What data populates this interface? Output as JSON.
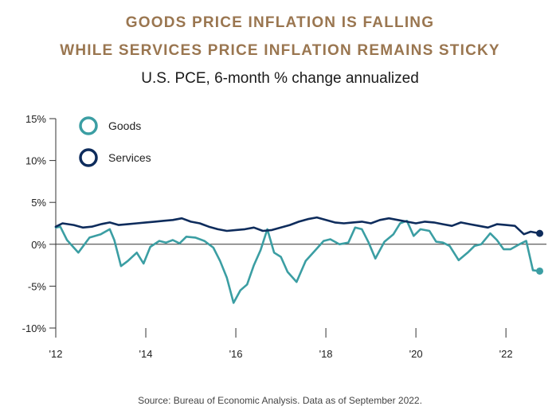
{
  "header": {
    "title_line1": "GOODS PRICE INFLATION IS FALLING",
    "title_line2": "WHILE SERVICES PRICE INFLATION REMAINS STICKY",
    "subtitle": "U.S. PCE, 6-month % change annualized"
  },
  "footer": {
    "source": "Source: Bureau of Economic Analysis. Data as of September 2022."
  },
  "colors": {
    "goods": "#3b9ea3",
    "services": "#0e2c5c",
    "title": "#9a7650",
    "axis": "#333333"
  },
  "chart_data": {
    "type": "line",
    "title": "GOODS PRICE INFLATION IS FALLING WHILE SERVICES PRICE INFLATION REMAINS STICKY",
    "subtitle": "U.S. PCE, 6-month % change annualized",
    "xlabel": "",
    "ylabel": "",
    "xlim": [
      2012.0,
      2022.9
    ],
    "ylim": [
      -10,
      15
    ],
    "y_ticks": [
      15,
      10,
      5,
      0,
      -5,
      -10
    ],
    "y_tick_labels": [
      "15%",
      "10%",
      "5%",
      "0%",
      "-5%",
      "-10%"
    ],
    "x_ticks": [
      2012,
      2014,
      2016,
      2018,
      2020,
      2022
    ],
    "x_tick_labels": [
      "'12",
      "'14",
      "'16",
      "'18",
      "'20",
      "'22"
    ],
    "legend": {
      "placement": "top-left",
      "entries": [
        "Goods",
        "Services"
      ]
    },
    "series": [
      {
        "name": "Goods",
        "color": "#3b9ea3",
        "end_marker": true,
        "points": [
          [
            2012.0,
            2.0
          ],
          [
            2012.1,
            2.1
          ],
          [
            2012.25,
            0.5
          ],
          [
            2012.5,
            -1.0
          ],
          [
            2012.75,
            0.8
          ],
          [
            2013.0,
            1.2
          ],
          [
            2013.2,
            1.8
          ],
          [
            2013.3,
            0.5
          ],
          [
            2013.45,
            -2.6
          ],
          [
            2013.6,
            -2.0
          ],
          [
            2013.8,
            -1.0
          ],
          [
            2013.95,
            -2.3
          ],
          [
            2014.1,
            -0.3
          ],
          [
            2014.3,
            0.4
          ],
          [
            2014.45,
            0.2
          ],
          [
            2014.6,
            0.5
          ],
          [
            2014.75,
            0.1
          ],
          [
            2014.9,
            0.9
          ],
          [
            2015.1,
            0.8
          ],
          [
            2015.3,
            0.4
          ],
          [
            2015.5,
            -0.4
          ],
          [
            2015.65,
            -2.0
          ],
          [
            2015.8,
            -4.0
          ],
          [
            2015.95,
            -7.0
          ],
          [
            2016.1,
            -5.5
          ],
          [
            2016.25,
            -4.8
          ],
          [
            2016.4,
            -2.5
          ],
          [
            2016.55,
            -0.7
          ],
          [
            2016.7,
            1.8
          ],
          [
            2016.85,
            -1.0
          ],
          [
            2017.0,
            -1.5
          ],
          [
            2017.15,
            -3.3
          ],
          [
            2017.35,
            -4.5
          ],
          [
            2017.55,
            -2.0
          ],
          [
            2017.75,
            -0.8
          ],
          [
            2017.95,
            0.4
          ],
          [
            2018.1,
            0.6
          ],
          [
            2018.3,
            0.0
          ],
          [
            2018.5,
            0.2
          ],
          [
            2018.65,
            2.0
          ],
          [
            2018.8,
            1.8
          ],
          [
            2018.95,
            0.2
          ],
          [
            2019.1,
            -1.7
          ],
          [
            2019.3,
            0.3
          ],
          [
            2019.5,
            1.2
          ],
          [
            2019.65,
            2.5
          ],
          [
            2019.8,
            2.8
          ],
          [
            2019.95,
            1.0
          ],
          [
            2020.1,
            1.8
          ],
          [
            2020.3,
            1.6
          ],
          [
            2020.45,
            0.3
          ],
          [
            2020.6,
            0.2
          ],
          [
            2020.75,
            -0.2
          ],
          [
            2020.95,
            -1.9
          ],
          [
            2021.15,
            -1.0
          ],
          [
            2021.3,
            -0.2
          ],
          [
            2021.45,
            0.0
          ],
          [
            2021.65,
            1.3
          ],
          [
            2021.8,
            0.5
          ],
          [
            2021.95,
            -0.6
          ],
          [
            2022.1,
            -0.6
          ],
          [
            2022.3,
            0.0
          ],
          [
            2022.45,
            0.4
          ],
          [
            2022.6,
            -3.1
          ],
          [
            2022.75,
            -3.2
          ]
        ]
      },
      {
        "name": "Services",
        "color": "#0e2c5c",
        "end_marker": true,
        "points": [
          [
            2012.0,
            2.1
          ],
          [
            2012.15,
            2.5
          ],
          [
            2012.4,
            2.3
          ],
          [
            2012.6,
            2.0
          ],
          [
            2012.8,
            2.1
          ],
          [
            2013.0,
            2.4
          ],
          [
            2013.2,
            2.6
          ],
          [
            2013.4,
            2.3
          ],
          [
            2013.6,
            2.4
          ],
          [
            2013.8,
            2.5
          ],
          [
            2014.0,
            2.6
          ],
          [
            2014.2,
            2.7
          ],
          [
            2014.4,
            2.8
          ],
          [
            2014.6,
            2.9
          ],
          [
            2014.8,
            3.1
          ],
          [
            2015.0,
            2.7
          ],
          [
            2015.2,
            2.5
          ],
          [
            2015.4,
            2.1
          ],
          [
            2015.6,
            1.8
          ],
          [
            2015.8,
            1.6
          ],
          [
            2016.0,
            1.7
          ],
          [
            2016.2,
            1.8
          ],
          [
            2016.4,
            2.0
          ],
          [
            2016.6,
            1.6
          ],
          [
            2016.8,
            1.7
          ],
          [
            2017.0,
            2.0
          ],
          [
            2017.2,
            2.3
          ],
          [
            2017.4,
            2.7
          ],
          [
            2017.6,
            3.0
          ],
          [
            2017.8,
            3.2
          ],
          [
            2018.0,
            2.9
          ],
          [
            2018.2,
            2.6
          ],
          [
            2018.4,
            2.5
          ],
          [
            2018.6,
            2.6
          ],
          [
            2018.8,
            2.7
          ],
          [
            2019.0,
            2.5
          ],
          [
            2019.2,
            2.9
          ],
          [
            2019.4,
            3.1
          ],
          [
            2019.6,
            2.9
          ],
          [
            2019.8,
            2.7
          ],
          [
            2020.0,
            2.5
          ],
          [
            2020.2,
            2.7
          ],
          [
            2020.4,
            2.6
          ],
          [
            2020.6,
            2.4
          ],
          [
            2020.8,
            2.2
          ],
          [
            2021.0,
            2.6
          ],
          [
            2021.2,
            2.4
          ],
          [
            2021.4,
            2.2
          ],
          [
            2021.6,
            2.0
          ],
          [
            2021.8,
            2.4
          ],
          [
            2022.0,
            2.3
          ],
          [
            2022.2,
            2.2
          ],
          [
            2022.4,
            1.2
          ],
          [
            2022.55,
            1.5
          ],
          [
            2022.75,
            1.3
          ]
        ]
      }
    ]
  }
}
